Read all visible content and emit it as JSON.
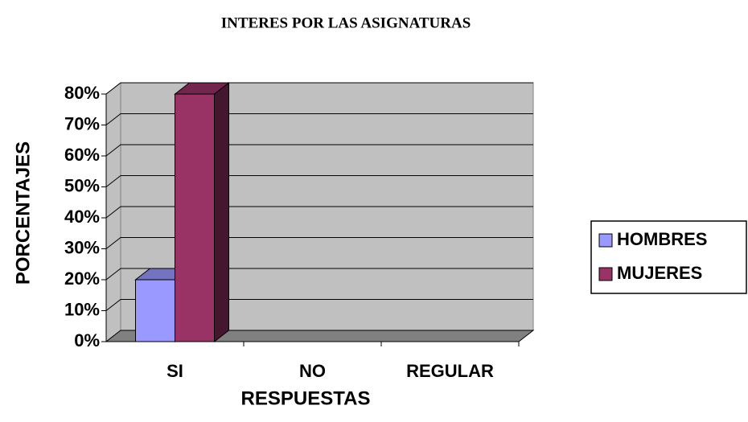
{
  "chart_data": {
    "type": "bar3d",
    "title": "INTERES POR LAS ASIGNATURAS",
    "x_label": "RESPUESTAS",
    "y_label": "PORCENTAJES",
    "categories": [
      "SI",
      "NO",
      "REGULAR"
    ],
    "series": [
      {
        "name": "HOMBRES",
        "color": "#9999ff",
        "values": [
          20,
          0,
          0
        ]
      },
      {
        "name": "MUJERES",
        "color": "#993366",
        "values": [
          80,
          0,
          0
        ]
      }
    ],
    "ylim": [
      0,
      80
    ],
    "yticks": [
      {
        "value": 0,
        "label": "0%"
      },
      {
        "value": 10,
        "label": "10%"
      },
      {
        "value": 20,
        "label": "20%"
      },
      {
        "value": 30,
        "label": "30%"
      },
      {
        "value": 40,
        "label": "40%"
      },
      {
        "value": 50,
        "label": "50%"
      },
      {
        "value": 60,
        "label": "60%"
      },
      {
        "value": 70,
        "label": "70%"
      },
      {
        "value": 80,
        "label": "80%"
      }
    ],
    "grid": true,
    "legend": "right"
  }
}
